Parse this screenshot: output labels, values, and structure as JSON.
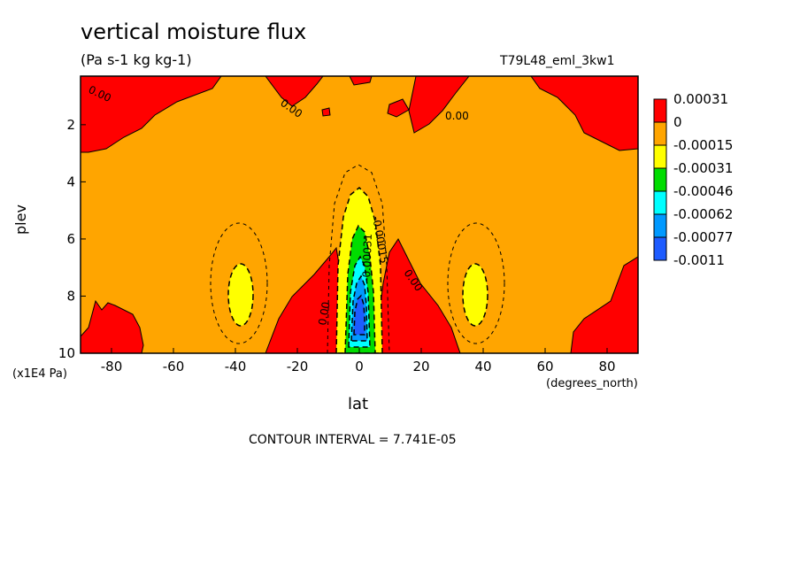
{
  "title": "vertical moisture flux",
  "units": "(Pa s-1 kg kg-1)",
  "run_id": "T79L48_eml_3kw1",
  "contour_interval": "CONTOUR INTERVAL = 7.741E-05",
  "colors": {
    "red": "#ff0000",
    "orange": "#ffa500",
    "yellow": "#ffff00",
    "green": "#00dd00",
    "cyan": "#00ffff",
    "sky": "#0099ff",
    "blue": "#1e5cff"
  },
  "chart_data": {
    "type": "heatmap",
    "xlabel": "lat",
    "x_unit": "(degrees_north)",
    "ylabel": "plev",
    "y_unit": "(x1E4 Pa)",
    "xlim": [
      -90,
      90
    ],
    "ylim": [
      10,
      0.3
    ],
    "xticks": [
      -80,
      -60,
      -40,
      -20,
      0,
      20,
      40,
      60,
      80
    ],
    "yticks": [
      2,
      4,
      6,
      8,
      10
    ],
    "colorbar": [
      {
        "label": "0.00031",
        "color": "red"
      },
      {
        "label": "0",
        "color": "orange"
      },
      {
        "label": "-0.00015",
        "color": "yellow"
      },
      {
        "label": "-0.00031",
        "color": "green"
      },
      {
        "label": "-0.00046",
        "color": "cyan"
      },
      {
        "label": "-0.00062",
        "color": "sky"
      },
      {
        "label": "-0.00077",
        "color": "blue"
      },
      {
        "label": "-0.0011",
        "color": ""
      }
    ],
    "contour_labels": [
      "0.00",
      "0.00",
      "0.00",
      "0.00",
      "0.00",
      "0.00",
      "-0.00015",
      "-0.00031"
    ]
  }
}
